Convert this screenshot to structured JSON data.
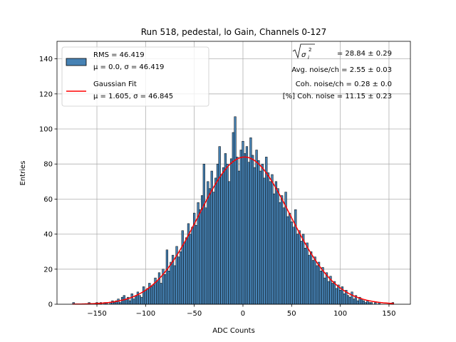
{
  "chart_data": {
    "type": "bar",
    "title": "Run 518, pedestal, lo Gain, Channels 0-127",
    "xlabel": "ADC Counts",
    "ylabel": "Entries",
    "xlim": [
      -191,
      172
    ],
    "ylim": [
      0,
      150
    ],
    "grid": true,
    "xticks": [
      -150,
      -100,
      -50,
      0,
      50,
      100,
      150
    ],
    "xtick_labels": [
      "−150",
      "−100",
      "−50",
      "0",
      "50",
      "100",
      "150"
    ],
    "yticks": [
      0,
      20,
      40,
      60,
      80,
      100,
      120,
      140
    ],
    "ytick_labels": [
      "0",
      "20",
      "40",
      "60",
      "80",
      "100",
      "120",
      "140"
    ],
    "histogram": {
      "bin_start": -175,
      "bin_width": 2,
      "counts": [
        1,
        0,
        0,
        0,
        0,
        0,
        0,
        0,
        1,
        0,
        0,
        0,
        1,
        0,
        1,
        0,
        1,
        1,
        0,
        1,
        2,
        1,
        2,
        3,
        1,
        4,
        5,
        3,
        4,
        2,
        6,
        3,
        5,
        7,
        5,
        4,
        10,
        8,
        9,
        12,
        10,
        11,
        15,
        13,
        18,
        12,
        20,
        17,
        31,
        19,
        24,
        28,
        22,
        33,
        27,
        30,
        42,
        35,
        38,
        46,
        40,
        44,
        52,
        45,
        58,
        54,
        62,
        80,
        55,
        70,
        66,
        76,
        64,
        72,
        80,
        90,
        74,
        78,
        86,
        80,
        70,
        83,
        98,
        107,
        84,
        76,
        88,
        93,
        86,
        90,
        81,
        95,
        85,
        78,
        88,
        82,
        76,
        80,
        72,
        84,
        75,
        70,
        74,
        63,
        70,
        66,
        58,
        62,
        55,
        64,
        50,
        52,
        47,
        44,
        54,
        40,
        42,
        36,
        40,
        32,
        35,
        28,
        30,
        25,
        27,
        22,
        24,
        19,
        21,
        15,
        18,
        13,
        16,
        12,
        13,
        9,
        11,
        8,
        10,
        6,
        8,
        5,
        4,
        7,
        3,
        5,
        2,
        4,
        3,
        2,
        1,
        2,
        1,
        1,
        0,
        1,
        0,
        1,
        0,
        0,
        0,
        0,
        0,
        0,
        1
      ],
      "color": "#4682b4",
      "edge_color": "#000000"
    },
    "fit": {
      "type": "gaussian",
      "mu": 1.605,
      "sigma": 46.845,
      "amplitude": 84,
      "range": [
        -175,
        155
      ],
      "color": "#ff0000"
    },
    "legend": {
      "placement": "upper-left",
      "entries": [
        {
          "line1": "RMS = 46.419",
          "line2": "μ = 0.0, σ = 46.419"
        },
        {
          "line1": "Gaussian Fit",
          "line2": "μ = 1.605, σ = 46.845"
        }
      ]
    },
    "annotations": {
      "sigma_symbol": "σ",
      "sigma_sub": "i",
      "sigma_sup": "2",
      "sigma_value": "= 28.84 ± 0.29",
      "lines": [
        "Avg. noise/ch = 2.55 ± 0.03",
        "Coh. noise/ch = 0.28 ± 0.0",
        "[%] Coh. noise = 11.15 ± 0.23"
      ]
    }
  }
}
